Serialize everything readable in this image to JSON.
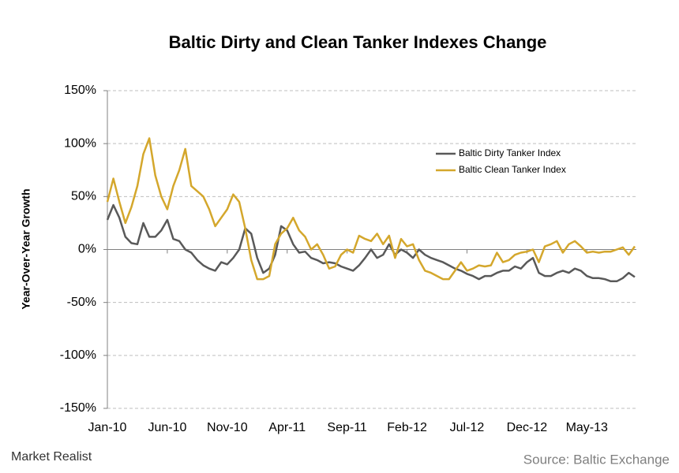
{
  "chart_data": {
    "type": "line",
    "title": "Baltic Dirty and Clean Tanker Indexes Change",
    "y_label": "Year-Over-Year Growth",
    "source": "Source: Baltic Exchange",
    "brand": "Market Realist",
    "legend": "upper right",
    "grid": true,
    "ylim": [
      -150,
      150
    ],
    "yticks": [
      {
        "value": -150,
        "label": "-150%"
      },
      {
        "value": -100,
        "label": "-100%"
      },
      {
        "value": -50,
        "label": "-50%"
      },
      {
        "value": 0,
        "label": "0%"
      },
      {
        "value": 50,
        "label": "50%"
      },
      {
        "value": 100,
        "label": "100%"
      },
      {
        "value": 150,
        "label": "150%"
      }
    ],
    "categories": [
      "Jan-10",
      null,
      null,
      null,
      null,
      null,
      null,
      null,
      null,
      null,
      "Jun-10",
      null,
      null,
      null,
      null,
      null,
      null,
      null,
      null,
      null,
      "Nov-10",
      null,
      null,
      null,
      null,
      null,
      null,
      null,
      null,
      null,
      "Apr-11",
      null,
      null,
      null,
      null,
      null,
      null,
      null,
      null,
      null,
      "Sep-11",
      null,
      null,
      null,
      null,
      null,
      null,
      null,
      null,
      null,
      "Feb-12",
      null,
      null,
      null,
      null,
      null,
      null,
      null,
      null,
      null,
      "Jul-12",
      null,
      null,
      null,
      null,
      null,
      null,
      null,
      null,
      null,
      "Dec-12",
      null,
      null,
      null,
      null,
      null,
      null,
      null,
      null,
      null,
      "May-13",
      null,
      null,
      null,
      null,
      null,
      null,
      null,
      null
    ],
    "series": [
      {
        "name": "Baltic Dirty Tanker Index",
        "color": "#595959",
        "values": [
          28,
          42,
          30,
          12,
          6,
          5,
          25,
          12,
          12,
          18,
          28,
          10,
          8,
          0,
          -3,
          -10,
          -15,
          -18,
          -20,
          -12,
          -14,
          -8,
          0,
          20,
          15,
          -8,
          -22,
          -18,
          -5,
          22,
          18,
          5,
          -3,
          -2,
          -8,
          -10,
          -13,
          -12,
          -13,
          -16,
          -18,
          -20,
          -15,
          -8,
          0,
          -8,
          -5,
          5,
          -5,
          0,
          -3,
          -8,
          0,
          -5,
          -8,
          -10,
          -12,
          -15,
          -18,
          -20,
          -23,
          -25,
          -28,
          -25,
          -25,
          -22,
          -20,
          -20,
          -16,
          -18,
          -12,
          -8,
          -22,
          -25,
          -25,
          -22,
          -20,
          -22,
          -18,
          -20,
          -25,
          -27,
          -27,
          -28,
          -30,
          -30,
          -27,
          -22,
          -26
        ]
      },
      {
        "name": "Baltic Clean Tanker Index",
        "color": "#d4a72c",
        "values": [
          45,
          67,
          45,
          25,
          40,
          60,
          90,
          105,
          70,
          50,
          38,
          60,
          75,
          95,
          60,
          55,
          50,
          38,
          22,
          30,
          38,
          52,
          45,
          20,
          -10,
          -28,
          -28,
          -25,
          5,
          15,
          20,
          30,
          18,
          12,
          0,
          5,
          -5,
          -18,
          -16,
          -5,
          0,
          -3,
          13,
          10,
          8,
          15,
          5,
          13,
          -8,
          10,
          3,
          5,
          -10,
          -20,
          -22,
          -25,
          -28,
          -28,
          -20,
          -12,
          -20,
          -18,
          -15,
          -16,
          -15,
          -3,
          -12,
          -10,
          -5,
          -3,
          -2,
          0,
          -12,
          3,
          5,
          8,
          -3,
          5,
          8,
          3,
          -3,
          -2,
          -3,
          -2,
          -2,
          0,
          2,
          -5,
          3
        ]
      }
    ]
  }
}
